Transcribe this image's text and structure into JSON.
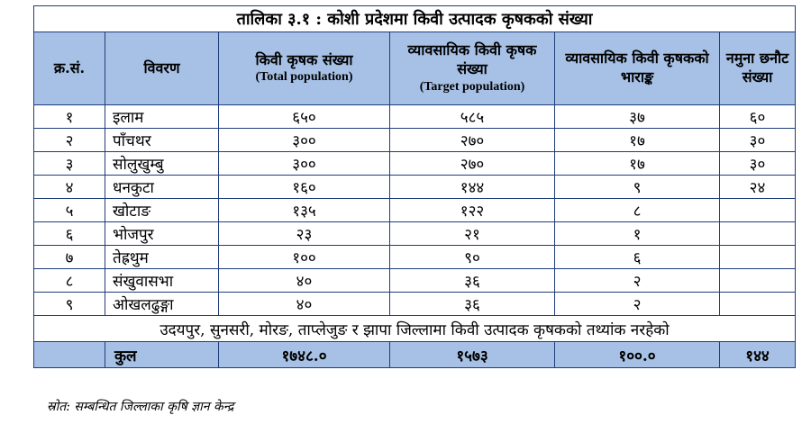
{
  "table": {
    "title": "तालिका ३.१ : कोशी प्रदेशमा किवी उत्पादक कृषकको संख्या",
    "headers": {
      "sn": "क्र.सं.",
      "desc": "विवरण",
      "total": "किवी कृषक संख्या",
      "total_en": "(Total population)",
      "target": "व्यावसायिक किवी कृषक संख्या",
      "target_en": "(Target population)",
      "weight": "व्यावसायिक किवी कृषकको भाराङ्क",
      "sample": "नमुना छनौट संख्या"
    },
    "rows": [
      {
        "sn": "१",
        "name": "इलाम",
        "total": "६५०",
        "target": "५८५",
        "weight": "३७",
        "sample": "६०"
      },
      {
        "sn": "२",
        "name": "पाँचथर",
        "total": "३००",
        "target": "२७०",
        "weight": "१७",
        "sample": "३०"
      },
      {
        "sn": "३",
        "name": "सोलुखुम्बु",
        "total": "३००",
        "target": "२७०",
        "weight": "१७",
        "sample": "३०"
      },
      {
        "sn": "४",
        "name": "धनकुटा",
        "total": "१६०",
        "target": "१४४",
        "weight": "९",
        "sample": "२४"
      },
      {
        "sn": "५",
        "name": "खोटाङ",
        "total": "१३५",
        "target": "१२२",
        "weight": "८",
        "sample": ""
      },
      {
        "sn": "६",
        "name": "भोजपुर",
        "total": "२३",
        "target": "२१",
        "weight": "१",
        "sample": ""
      },
      {
        "sn": "७",
        "name": "तेह्रथुम",
        "total": "१००",
        "target": "९०",
        "weight": "६",
        "sample": ""
      },
      {
        "sn": "८",
        "name": "संखुवासभा",
        "total": "४०",
        "target": "३६",
        "weight": "२",
        "sample": ""
      },
      {
        "sn": "९",
        "name": "ओखलढुङ्गा",
        "total": "४०",
        "target": "३६",
        "weight": "२",
        "sample": ""
      }
    ],
    "note": "उदयपुर, सुनसरी, मोरङ, ताप्लेजुङ र झापा जिल्लामा किवी उत्पादक कृषकको तथ्यांक नरहेको",
    "totals": {
      "label": "कुल",
      "total": "१७४८.०",
      "target": "१५७३",
      "weight": "१००.०",
      "sample": "१४४"
    }
  },
  "source": "स्रोत: सम्बन्धित जिल्लाका कृषि ज्ञान केन्द्र"
}
